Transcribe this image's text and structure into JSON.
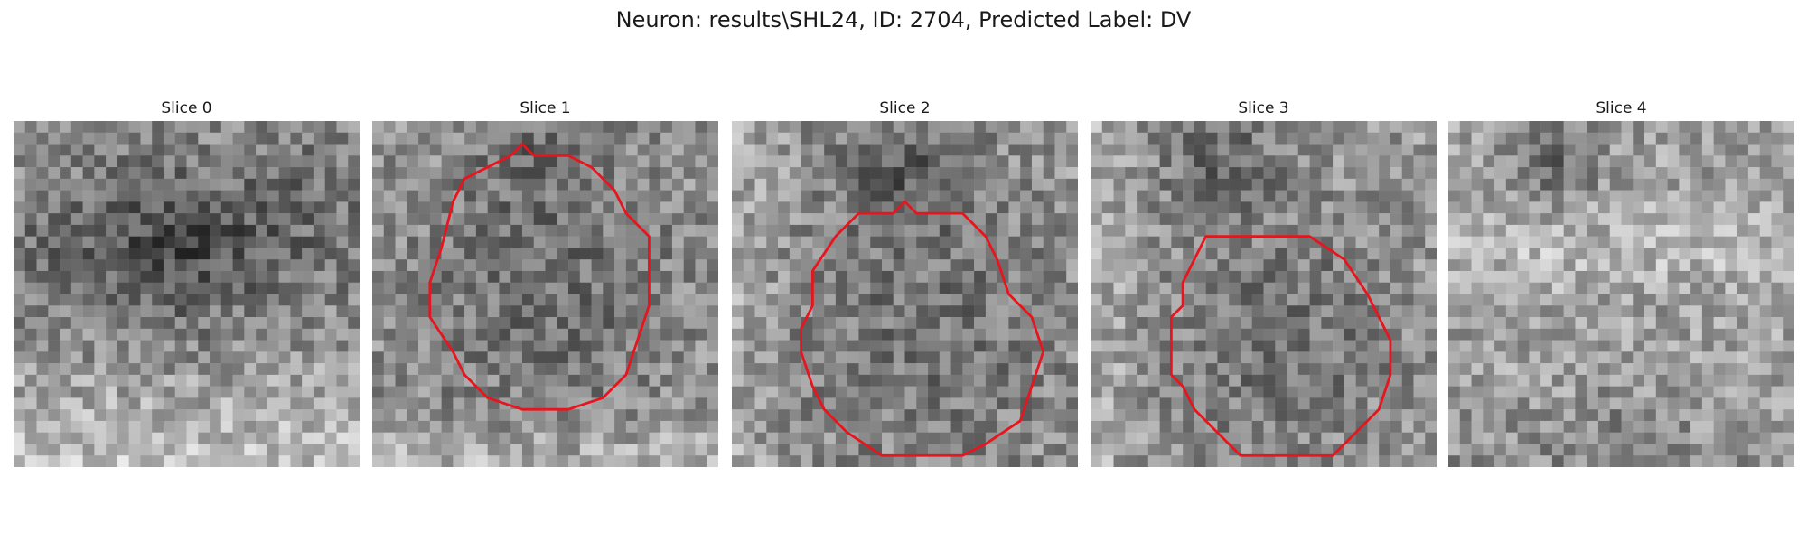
{
  "figure": {
    "title": "Neuron: results\\SHL24, ID: 2704, Predicted Label: DV"
  },
  "panels": [
    {
      "title": "Slice 0",
      "has_contour": false
    },
    {
      "title": "Slice 1",
      "has_contour": true
    },
    {
      "title": "Slice 2",
      "has_contour": true
    },
    {
      "title": "Slice 3",
      "has_contour": true
    },
    {
      "title": "Slice 4",
      "has_contour": false
    }
  ],
  "colors": {
    "contour": "#e8141e",
    "background": "#ffffff"
  }
}
